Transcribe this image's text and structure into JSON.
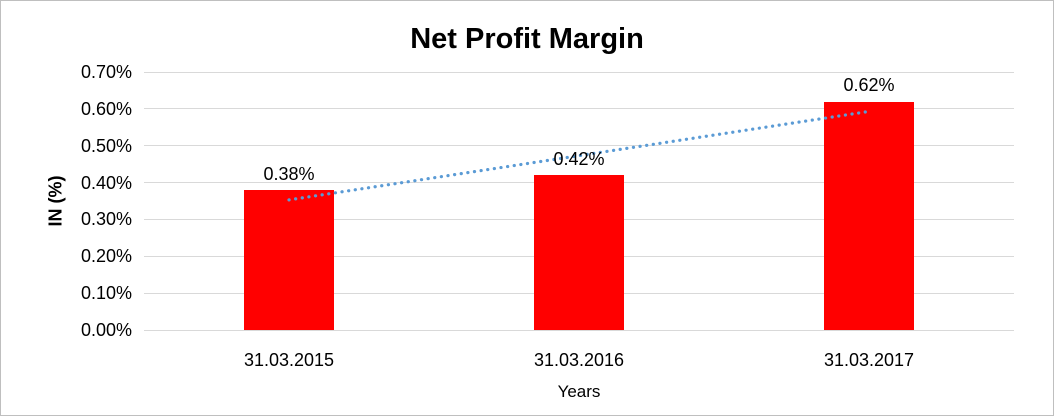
{
  "chart_data": {
    "type": "bar",
    "title": "Net Profit Margin",
    "xlabel": "Years",
    "ylabel": "IN (%)",
    "categories": [
      "31.03.2015",
      "31.03.2016",
      "31.03.2017"
    ],
    "values": [
      0.38,
      0.42,
      0.62
    ],
    "data_labels": [
      "0.38%",
      "0.42%",
      "0.62%"
    ],
    "ylim": [
      0,
      0.7
    ],
    "ytick_step": 0.1,
    "ytick_labels": [
      "0.00%",
      "0.10%",
      "0.20%",
      "0.30%",
      "0.40%",
      "0.50%",
      "0.60%",
      "0.70%"
    ],
    "grid": true,
    "legend": "none",
    "bar_color": "#ff0000",
    "gridline_color": "#d9d9d9",
    "text_color": "#000000",
    "canvas_border_color": "#bfbfbf",
    "trendline": {
      "type": "linear",
      "style": "dotted",
      "color": "#5b9bd5",
      "start_value": 0.353,
      "end_value": 0.593
    }
  }
}
